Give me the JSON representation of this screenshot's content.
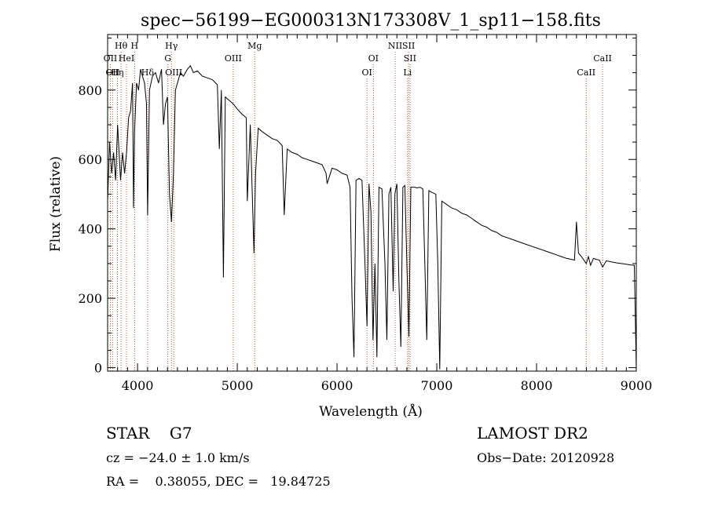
{
  "chart_data": {
    "type": "line",
    "title": "spec−56199−EG000313N173308V_1_sp11−158.fits",
    "xlabel": "Wavelength (Å)",
    "ylabel": "Flux (relative)",
    "xlim": [
      3700,
      9000
    ],
    "ylim": [
      -10,
      960
    ],
    "xticks": [
      4000,
      5000,
      6000,
      7000,
      8000,
      9000
    ],
    "yticks": [
      0,
      200,
      400,
      600,
      800
    ],
    "grid": false,
    "series": [
      {
        "color": "#000000",
        "points": [
          [
            3700,
            480
          ],
          [
            3720,
            650
          ],
          [
            3740,
            560
          ],
          [
            3760,
            620
          ],
          [
            3780,
            540
          ],
          [
            3800,
            700
          ],
          [
            3830,
            540
          ],
          [
            3850,
            620
          ],
          [
            3870,
            560
          ],
          [
            3890,
            620
          ],
          [
            3910,
            720
          ],
          [
            3930,
            740
          ],
          [
            3950,
            820
          ],
          [
            3960,
            460
          ],
          [
            3970,
            680
          ],
          [
            3990,
            820
          ],
          [
            4010,
            800
          ],
          [
            4030,
            860
          ],
          [
            4050,
            840
          ],
          [
            4070,
            820
          ],
          [
            4090,
            760
          ],
          [
            4101,
            440
          ],
          [
            4120,
            800
          ],
          [
            4150,
            840
          ],
          [
            4180,
            850
          ],
          [
            4210,
            820
          ],
          [
            4240,
            860
          ],
          [
            4260,
            700
          ],
          [
            4280,
            760
          ],
          [
            4300,
            780
          ],
          [
            4320,
            500
          ],
          [
            4340,
            420
          ],
          [
            4360,
            560
          ],
          [
            4380,
            800
          ],
          [
            4400,
            820
          ],
          [
            4430,
            850
          ],
          [
            4460,
            840
          ],
          [
            4500,
            860
          ],
          [
            4530,
            870
          ],
          [
            4560,
            850
          ],
          [
            4600,
            855
          ],
          [
            4650,
            840
          ],
          [
            4700,
            835
          ],
          [
            4750,
            830
          ],
          [
            4800,
            815
          ],
          [
            4820,
            630
          ],
          [
            4840,
            800
          ],
          [
            4861,
            260
          ],
          [
            4880,
            780
          ],
          [
            4920,
            770
          ],
          [
            4960,
            760
          ],
          [
            5000,
            745
          ],
          [
            5050,
            730
          ],
          [
            5090,
            720
          ],
          [
            5100,
            480
          ],
          [
            5130,
            700
          ],
          [
            5167,
            330
          ],
          [
            5183,
            560
          ],
          [
            5210,
            690
          ],
          [
            5250,
            680
          ],
          [
            5300,
            670
          ],
          [
            5350,
            660
          ],
          [
            5400,
            655
          ],
          [
            5450,
            640
          ],
          [
            5470,
            440
          ],
          [
            5500,
            630
          ],
          [
            5550,
            620
          ],
          [
            5600,
            615
          ],
          [
            5650,
            605
          ],
          [
            5700,
            600
          ],
          [
            5750,
            595
          ],
          [
            5800,
            590
          ],
          [
            5850,
            585
          ],
          [
            5890,
            560
          ],
          [
            5900,
            530
          ],
          [
            5950,
            575
          ],
          [
            6000,
            570
          ],
          [
            6050,
            560
          ],
          [
            6100,
            555
          ],
          [
            6130,
            520
          ],
          [
            6150,
            200
          ],
          [
            6170,
            30
          ],
          [
            6190,
            540
          ],
          [
            6220,
            545
          ],
          [
            6250,
            540
          ],
          [
            6280,
            300
          ],
          [
            6300,
            120
          ],
          [
            6320,
            530
          ],
          [
            6340,
            450
          ],
          [
            6360,
            80
          ],
          [
            6380,
            300
          ],
          [
            6400,
            30
          ],
          [
            6420,
            520
          ],
          [
            6450,
            515
          ],
          [
            6480,
            300
          ],
          [
            6500,
            80
          ],
          [
            6520,
            500
          ],
          [
            6540,
            520
          ],
          [
            6563,
            220
          ],
          [
            6580,
            500
          ],
          [
            6600,
            530
          ],
          [
            6620,
            250
          ],
          [
            6640,
            60
          ],
          [
            6660,
            520
          ],
          [
            6680,
            525
          ],
          [
            6700,
            300
          ],
          [
            6720,
            90
          ],
          [
            6740,
            520
          ],
          [
            6780,
            520
          ],
          [
            6800,
            518
          ],
          [
            6830,
            520
          ],
          [
            6860,
            515
          ],
          [
            6880,
            300
          ],
          [
            6900,
            80
          ],
          [
            6920,
            510
          ],
          [
            6950,
            505
          ],
          [
            6990,
            500
          ],
          [
            7010,
            300
          ],
          [
            7030,
            -5
          ],
          [
            7050,
            480
          ],
          [
            7100,
            470
          ],
          [
            7150,
            460
          ],
          [
            7200,
            455
          ],
          [
            7250,
            445
          ],
          [
            7300,
            440
          ],
          [
            7350,
            430
          ],
          [
            7400,
            420
          ],
          [
            7450,
            410
          ],
          [
            7500,
            405
          ],
          [
            7550,
            395
          ],
          [
            7600,
            390
          ],
          [
            7650,
            380
          ],
          [
            7700,
            375
          ],
          [
            7750,
            370
          ],
          [
            7800,
            365
          ],
          [
            7850,
            360
          ],
          [
            7900,
            355
          ],
          [
            7950,
            350
          ],
          [
            8000,
            345
          ],
          [
            8050,
            340
          ],
          [
            8100,
            335
          ],
          [
            8150,
            330
          ],
          [
            8200,
            325
          ],
          [
            8250,
            320
          ],
          [
            8300,
            315
          ],
          [
            8350,
            312
          ],
          [
            8380,
            310
          ],
          [
            8400,
            420
          ],
          [
            8420,
            330
          ],
          [
            8450,
            320
          ],
          [
            8498,
            300
          ],
          [
            8520,
            320
          ],
          [
            8542,
            295
          ],
          [
            8570,
            315
          ],
          [
            8600,
            312
          ],
          [
            8630,
            310
          ],
          [
            8662,
            290
          ],
          [
            8700,
            308
          ],
          [
            8750,
            305
          ],
          [
            8800,
            302
          ],
          [
            8850,
            300
          ],
          [
            8900,
            298
          ],
          [
            8950,
            296
          ],
          [
            8980,
            295
          ],
          [
            8990,
            150
          ],
          [
            9000,
            -5
          ]
        ]
      }
    ],
    "line_markers": [
      {
        "wavelength": 3727,
        "label": "OII",
        "row": 2,
        "color": "#b05a30"
      },
      {
        "wavelength": 3750,
        "label": "OII",
        "row": 3,
        "color": "#b05a30"
      },
      {
        "wavelength": 3798,
        "label": "Hη",
        "row": 3,
        "color": "#b05a30"
      },
      {
        "wavelength": 3835,
        "label": "Hθ",
        "row": 1,
        "color": "#b05a30"
      },
      {
        "wavelength": 3889,
        "label": "HeI",
        "row": 2,
        "color": "#b05a30"
      },
      {
        "wavelength": 3970,
        "label": "H",
        "row": 1,
        "color": "#b05a30"
      },
      {
        "wavelength": 4101,
        "label": "Hδ",
        "row": 3,
        "color": "#b05a30"
      },
      {
        "wavelength": 4304,
        "label": "G",
        "row": 2,
        "color": "#b05a30"
      },
      {
        "wavelength": 4340,
        "label": "Hγ",
        "row": 1,
        "color": "#b05a30"
      },
      {
        "wavelength": 4363,
        "label": "OIII",
        "row": 3,
        "color": "#b05a30"
      },
      {
        "wavelength": 4959,
        "label": "OIII",
        "row": 2,
        "color": "#b05a30"
      },
      {
        "wavelength": 5175,
        "label": "Mg",
        "row": 1,
        "color": "#b05a30"
      },
      {
        "wavelength": 6300,
        "label": "OI",
        "row": 3,
        "color": "#b05a30"
      },
      {
        "wavelength": 6364,
        "label": "OI",
        "row": 2,
        "color": "#b05a30"
      },
      {
        "wavelength": 6583,
        "label": "NII",
        "row": 1,
        "color": "#b05a30"
      },
      {
        "wavelength": 6707,
        "label": "Li",
        "row": 3,
        "color": "#b05a30"
      },
      {
        "wavelength": 6717,
        "label": "SII",
        "row": 1,
        "color": "#b05a30"
      },
      {
        "wavelength": 6731,
        "label": "SII",
        "row": 2,
        "color": "#b05a30"
      },
      {
        "wavelength": 8498,
        "label": "CaII",
        "row": 3,
        "color": "#b05a30"
      },
      {
        "wavelength": 8662,
        "label": "CaII",
        "row": 2,
        "color": "#b05a30"
      }
    ]
  },
  "info": {
    "star_type": "STAR    G7",
    "survey": "LAMOST DR2",
    "cz": "cz = −24.0 ± 1.0 km/s",
    "obs_date": "Obs−Date: 20120928",
    "radec": "RA =    0.38055, DEC =   19.84725"
  }
}
